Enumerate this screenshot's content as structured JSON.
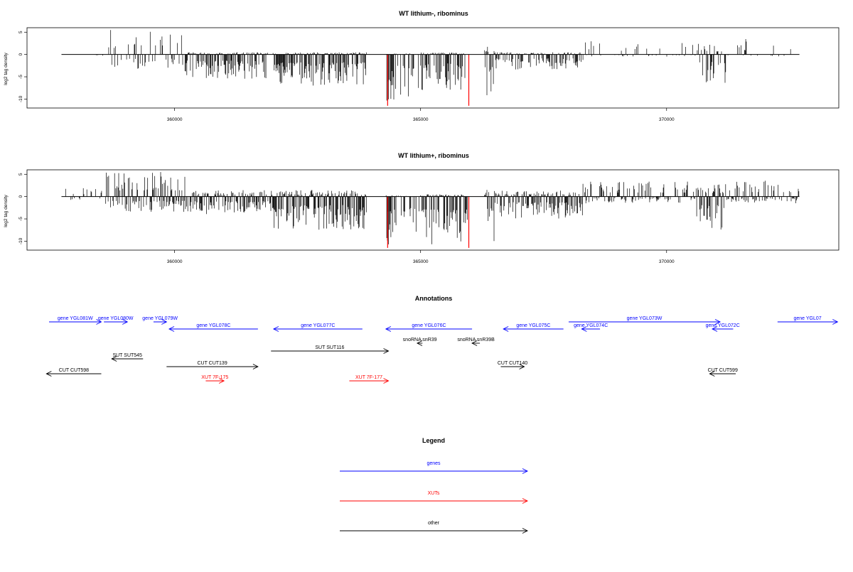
{
  "chart_data": [
    {
      "type": "bar",
      "title": "WT lithium-, ribominus",
      "ylabel": "log2 tag density",
      "xlabel": "",
      "xlim": [
        357000,
        373500
      ],
      "ylim": [
        -12,
        6
      ],
      "xticks": [
        "360000",
        "365000",
        "370000"
      ],
      "yticks": [
        "5",
        "0",
        "-5",
        "-10"
      ],
      "x_range_of_data": [
        357700,
        372700
      ],
      "highlight_bars": [
        {
          "x": 364330,
          "value": -11.5,
          "color": "#ff0000"
        },
        {
          "x": 365980,
          "value": -11.5,
          "color": "#ff0000"
        }
      ],
      "density_profile": [
        {
          "x_start": 357700,
          "x_end": 358700,
          "positive": 2.5,
          "negative": -0.5,
          "density": 0.08
        },
        {
          "x_start": 358700,
          "x_end": 360200,
          "positive": 5.5,
          "negative": -3.5,
          "density": 0.35
        },
        {
          "x_start": 360200,
          "x_end": 361900,
          "positive": 0.5,
          "negative": -5.5,
          "density": 0.9
        },
        {
          "x_start": 362000,
          "x_end": 363900,
          "positive": 0.5,
          "negative": -7.0,
          "density": 0.95
        },
        {
          "x_start": 364300,
          "x_end": 364500,
          "positive": 0.3,
          "negative": -11.0,
          "density": 1.0
        },
        {
          "x_start": 364500,
          "x_end": 365000,
          "positive": 0.3,
          "negative": -10.0,
          "density": 0.45
        },
        {
          "x_start": 365000,
          "x_end": 365900,
          "positive": 0.5,
          "negative": -8.0,
          "density": 0.9
        },
        {
          "x_start": 366300,
          "x_end": 366500,
          "positive": 2.0,
          "negative": -10.0,
          "density": 0.6
        },
        {
          "x_start": 366500,
          "x_end": 368300,
          "positive": 0.5,
          "negative": -3.5,
          "density": 0.7
        },
        {
          "x_start": 368300,
          "x_end": 370600,
          "positive": 3.0,
          "negative": -0.5,
          "density": 0.15
        },
        {
          "x_start": 370600,
          "x_end": 371200,
          "positive": 2.5,
          "negative": -6.5,
          "density": 0.6
        },
        {
          "x_start": 371200,
          "x_end": 372700,
          "positive": 3.5,
          "negative": -0.5,
          "density": 0.15
        }
      ]
    },
    {
      "type": "bar",
      "title": "WT lithium+, ribominus",
      "ylabel": "log2 tag density",
      "xlabel": "",
      "xlim": [
        357000,
        373500
      ],
      "ylim": [
        -12,
        6
      ],
      "xticks": [
        "360000",
        "365000",
        "370000"
      ],
      "yticks": [
        "5",
        "0",
        "-5",
        "-10"
      ],
      "x_range_of_data": [
        357700,
        372700
      ],
      "highlight_bars": [
        {
          "x": 364330,
          "value": -11.5,
          "color": "#ff0000"
        },
        {
          "x": 365980,
          "value": -11.5,
          "color": "#ff0000"
        }
      ],
      "density_profile": [
        {
          "x_start": 357700,
          "x_end": 358600,
          "positive": 2.0,
          "negative": -1.0,
          "density": 0.2
        },
        {
          "x_start": 358600,
          "x_end": 360300,
          "positive": 5.5,
          "negative": -3.5,
          "density": 0.7
        },
        {
          "x_start": 360300,
          "x_end": 362000,
          "positive": 1.5,
          "negative": -4.0,
          "density": 0.85
        },
        {
          "x_start": 362000,
          "x_end": 363900,
          "positive": 1.5,
          "negative": -7.5,
          "density": 0.95
        },
        {
          "x_start": 364300,
          "x_end": 364500,
          "positive": 0.3,
          "negative": -11.0,
          "density": 1.0
        },
        {
          "x_start": 364500,
          "x_end": 365000,
          "positive": 0.3,
          "negative": -10.0,
          "density": 0.45
        },
        {
          "x_start": 365000,
          "x_end": 365950,
          "positive": 0.5,
          "negative": -11.5,
          "density": 1.0
        },
        {
          "x_start": 366300,
          "x_end": 366500,
          "positive": 1.5,
          "negative": -10.0,
          "density": 0.6
        },
        {
          "x_start": 366500,
          "x_end": 368300,
          "positive": 1.5,
          "negative": -5.0,
          "density": 0.85
        },
        {
          "x_start": 368300,
          "x_end": 370600,
          "positive": 3.5,
          "negative": -1.5,
          "density": 0.5
        },
        {
          "x_start": 370600,
          "x_end": 371200,
          "positive": 3.0,
          "negative": -7.5,
          "density": 0.75
        },
        {
          "x_start": 371200,
          "x_end": 372700,
          "positive": 4.0,
          "negative": -1.5,
          "density": 0.6
        }
      ]
    }
  ],
  "annotations": {
    "title": "Annotations",
    "items": [
      {
        "label": "gene YGL081W",
        "start": 357700,
        "end": 359700,
        "strand": "+",
        "color": "#0000ff",
        "row": 0
      },
      {
        "label": "gene YGL080W",
        "start": 359800,
        "end": 360700,
        "strand": "+",
        "color": "#0000ff",
        "row": 0
      },
      {
        "label": "gene YGL079W",
        "start": 361700,
        "end": 362200,
        "strand": "+",
        "color": "#0000ff",
        "row": 0
      },
      {
        "label": "gene YGL078C",
        "start": 362300,
        "end": 365700,
        "strand": "-",
        "color": "#0000ff",
        "row": 1
      },
      {
        "label": "gene YGL077C",
        "start": 366300,
        "end": 369700,
        "strand": "-",
        "color": "#0000ff",
        "row": 1
      },
      {
        "label": "gene YGL076C",
        "start": 370600,
        "end": 373900,
        "strand": "-",
        "color": "#0000ff",
        "row": 1
      },
      {
        "label": "gene YGL075C",
        "start": 375100,
        "end": 377400,
        "strand": "-",
        "color": "#0000ff",
        "row": 1
      },
      {
        "label": "gene YGL074C",
        "start": 378100,
        "end": 378800,
        "strand": "-",
        "color": "#0000ff",
        "row": 1
      },
      {
        "label": "gene YGL073W",
        "start": 377600,
        "end": 383400,
        "strand": "+",
        "color": "#0000ff",
        "row": 0
      },
      {
        "label": "gene YGL072C",
        "start": 383100,
        "end": 383900,
        "strand": "-",
        "color": "#0000ff",
        "row": 1
      },
      {
        "label": "gene YGL07",
        "start": 385600,
        "end": 387900,
        "strand": "+",
        "color": "#0000ff",
        "row": 0
      },
      {
        "label": "snoRNA snR39",
        "start": 371800,
        "end": 372000,
        "strand": "-",
        "color": "#000000",
        "row": 2
      },
      {
        "label": "snoRNA snR39B",
        "start": 373900,
        "end": 374200,
        "strand": "-",
        "color": "#000000",
        "row": 2
      },
      {
        "label": "SUT SUT116",
        "start": 366200,
        "end": 370700,
        "strand": "+",
        "color": "#000000",
        "row": 3
      },
      {
        "label": "SUT SUT545",
        "start": 360100,
        "end": 361300,
        "strand": "-",
        "color": "#000000",
        "row": 4
      },
      {
        "label": "CUT CUT139",
        "start": 362200,
        "end": 365700,
        "strand": "+",
        "color": "#000000",
        "row": 5
      },
      {
        "label": "CUT CUT140",
        "start": 375000,
        "end": 375900,
        "strand": "+",
        "color": "#000000",
        "row": 5
      },
      {
        "label": "CUT CUT598",
        "start": 357600,
        "end": 359700,
        "strand": "-",
        "color": "#000000",
        "row": 6
      },
      {
        "label": "CUT CUT599",
        "start": 383000,
        "end": 384000,
        "strand": "-",
        "color": "#000000",
        "row": 6
      },
      {
        "label": "XUT 7F-175",
        "start": 363700,
        "end": 364400,
        "strand": "+",
        "color": "#ff0000",
        "row": 7
      },
      {
        "label": "XUT 7F-177",
        "start": 369200,
        "end": 370700,
        "strand": "+",
        "color": "#ff0000",
        "row": 7
      }
    ]
  },
  "legend": {
    "title": "Legend",
    "items": [
      {
        "label": "genes",
        "color": "#0000ff"
      },
      {
        "label": "XUTs",
        "color": "#ff0000"
      },
      {
        "label": "other",
        "color": "#000000"
      }
    ]
  }
}
